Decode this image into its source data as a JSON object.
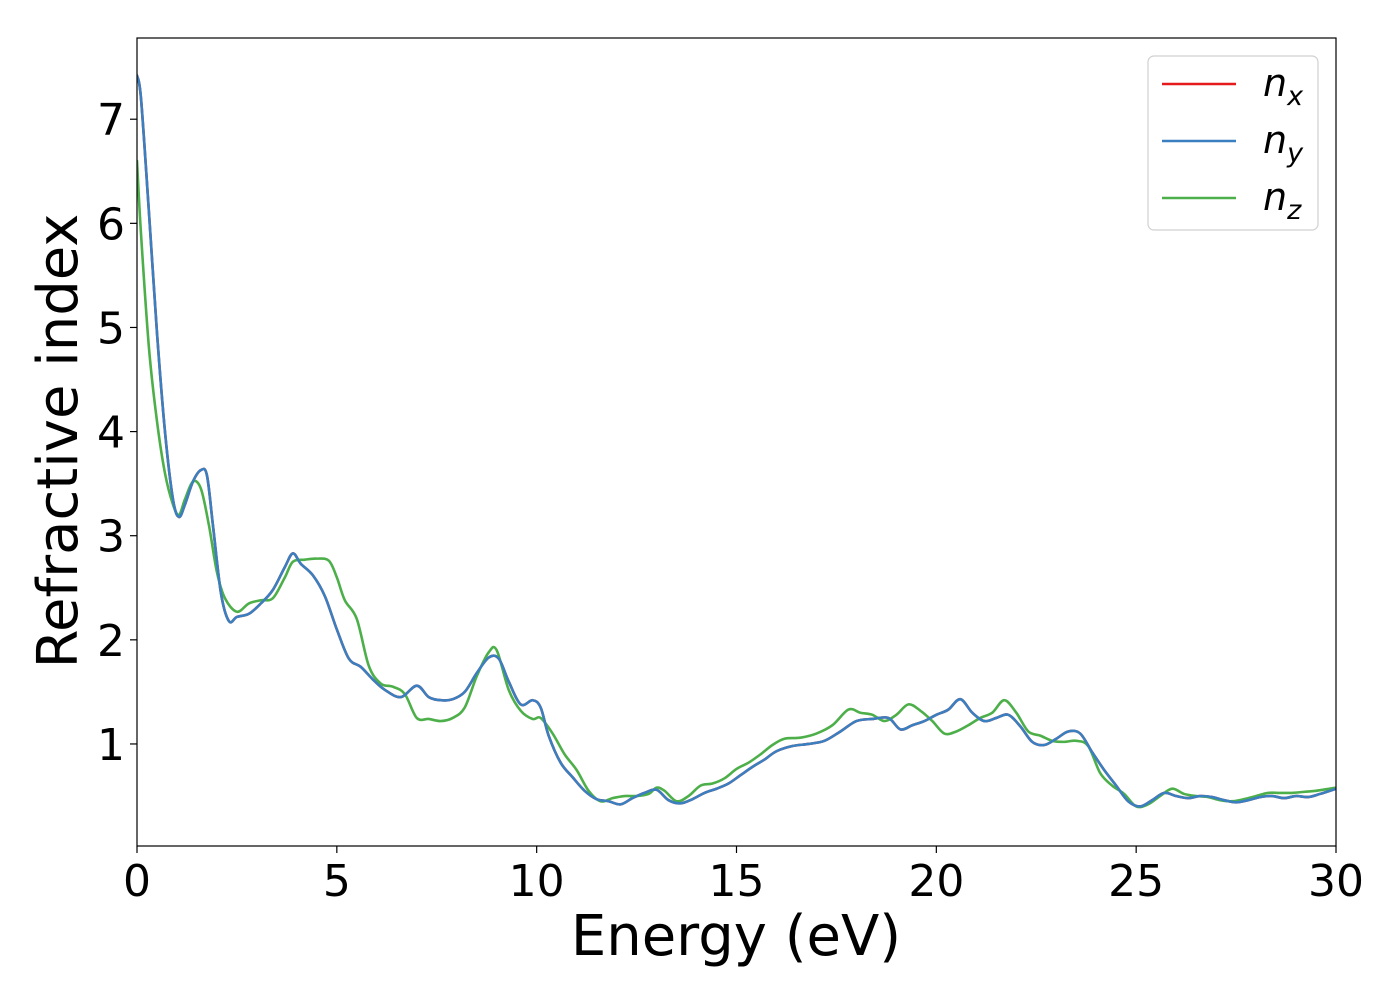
{
  "chart_data": {
    "type": "line",
    "title": "",
    "xlabel": "Energy (eV)",
    "ylabel": "Refractive index",
    "xlim": [
      0,
      30
    ],
    "ylim": [
      0.02,
      7.78
    ],
    "xticks": [
      0,
      5,
      10,
      15,
      20,
      25,
      30
    ],
    "yticks": [
      1,
      2,
      3,
      4,
      5,
      6,
      7
    ],
    "grid": false,
    "legend_position": "top-right",
    "series": [
      {
        "name": "n_x",
        "legend_base": "n",
        "legend_sub": "x",
        "color": "#e41a1c",
        "x": [
          0,
          0.1,
          0.3,
          0.5,
          0.7,
          0.9,
          1.05,
          1.2,
          1.4,
          1.6,
          1.75,
          1.9,
          2.1,
          2.3,
          2.5,
          2.8,
          3.1,
          3.4,
          3.7,
          3.9,
          4.1,
          4.4,
          4.7,
          5.0,
          5.3,
          5.6,
          5.9,
          6.2,
          6.6,
          7.0,
          7.3,
          7.6,
          7.9,
          8.2,
          8.5,
          8.8,
          9.05,
          9.3,
          9.6,
          9.9,
          10.1,
          10.3,
          10.6,
          10.9,
          11.2,
          11.5,
          11.8,
          12.1,
          12.4,
          12.7,
          13.0,
          13.3,
          13.6,
          13.9,
          14.2,
          14.5,
          14.8,
          15.1,
          15.4,
          15.7,
          16.0,
          16.4,
          16.8,
          17.2,
          17.6,
          18.0,
          18.4,
          18.8,
          19.1,
          19.4,
          19.7,
          20.0,
          20.3,
          20.6,
          20.9,
          21.2,
          21.5,
          21.8,
          22.1,
          22.4,
          22.7,
          23.0,
          23.3,
          23.6,
          23.9,
          24.2,
          24.5,
          24.8,
          25.1,
          25.4,
          25.7,
          26.0,
          26.3,
          26.6,
          26.9,
          27.2,
          27.5,
          27.8,
          28.1,
          28.4,
          28.7,
          29.0,
          29.3,
          29.6,
          30.0
        ],
        "y": [
          7.42,
          7.2,
          6.1,
          4.95,
          4.0,
          3.35,
          3.18,
          3.3,
          3.52,
          3.63,
          3.58,
          3.1,
          2.45,
          2.18,
          2.22,
          2.25,
          2.35,
          2.48,
          2.7,
          2.83,
          2.73,
          2.62,
          2.42,
          2.1,
          1.82,
          1.74,
          1.62,
          1.52,
          1.45,
          1.56,
          1.45,
          1.42,
          1.43,
          1.5,
          1.68,
          1.83,
          1.82,
          1.6,
          1.38,
          1.42,
          1.35,
          1.08,
          0.82,
          0.68,
          0.55,
          0.47,
          0.45,
          0.42,
          0.48,
          0.53,
          0.56,
          0.46,
          0.43,
          0.47,
          0.53,
          0.57,
          0.62,
          0.7,
          0.78,
          0.85,
          0.93,
          0.98,
          1.0,
          1.03,
          1.12,
          1.22,
          1.24,
          1.25,
          1.14,
          1.18,
          1.22,
          1.28,
          1.33,
          1.43,
          1.3,
          1.22,
          1.25,
          1.28,
          1.17,
          1.02,
          0.99,
          1.05,
          1.12,
          1.1,
          0.92,
          0.75,
          0.6,
          0.45,
          0.4,
          0.46,
          0.53,
          0.5,
          0.48,
          0.5,
          0.49,
          0.46,
          0.44,
          0.46,
          0.49,
          0.5,
          0.48,
          0.5,
          0.49,
          0.52,
          0.57
        ]
      },
      {
        "name": "n_y",
        "legend_base": "n",
        "legend_sub": "y",
        "color": "#3a7fbf",
        "x": [
          0,
          0.1,
          0.3,
          0.5,
          0.7,
          0.9,
          1.05,
          1.2,
          1.4,
          1.6,
          1.75,
          1.9,
          2.1,
          2.3,
          2.5,
          2.8,
          3.1,
          3.4,
          3.7,
          3.9,
          4.1,
          4.4,
          4.7,
          5.0,
          5.3,
          5.6,
          5.9,
          6.2,
          6.6,
          7.0,
          7.3,
          7.6,
          7.9,
          8.2,
          8.5,
          8.8,
          9.05,
          9.3,
          9.6,
          9.9,
          10.1,
          10.3,
          10.6,
          10.9,
          11.2,
          11.5,
          11.8,
          12.1,
          12.4,
          12.7,
          13.0,
          13.3,
          13.6,
          13.9,
          14.2,
          14.5,
          14.8,
          15.1,
          15.4,
          15.7,
          16.0,
          16.4,
          16.8,
          17.2,
          17.6,
          18.0,
          18.4,
          18.8,
          19.1,
          19.4,
          19.7,
          20.0,
          20.3,
          20.6,
          20.9,
          21.2,
          21.5,
          21.8,
          22.1,
          22.4,
          22.7,
          23.0,
          23.3,
          23.6,
          23.9,
          24.2,
          24.5,
          24.8,
          25.1,
          25.4,
          25.7,
          26.0,
          26.3,
          26.6,
          26.9,
          27.2,
          27.5,
          27.8,
          28.1,
          28.4,
          28.7,
          29.0,
          29.3,
          29.6,
          30.0
        ],
        "y": [
          7.42,
          7.2,
          6.1,
          4.95,
          4.0,
          3.35,
          3.18,
          3.3,
          3.52,
          3.63,
          3.58,
          3.1,
          2.45,
          2.18,
          2.22,
          2.25,
          2.35,
          2.48,
          2.7,
          2.83,
          2.73,
          2.62,
          2.42,
          2.1,
          1.82,
          1.74,
          1.62,
          1.52,
          1.45,
          1.56,
          1.45,
          1.42,
          1.43,
          1.5,
          1.68,
          1.83,
          1.82,
          1.6,
          1.38,
          1.42,
          1.35,
          1.08,
          0.82,
          0.68,
          0.55,
          0.47,
          0.45,
          0.42,
          0.48,
          0.53,
          0.56,
          0.46,
          0.43,
          0.47,
          0.53,
          0.57,
          0.62,
          0.7,
          0.78,
          0.85,
          0.93,
          0.98,
          1.0,
          1.03,
          1.12,
          1.22,
          1.24,
          1.25,
          1.14,
          1.18,
          1.22,
          1.28,
          1.33,
          1.43,
          1.3,
          1.22,
          1.25,
          1.28,
          1.17,
          1.02,
          0.99,
          1.05,
          1.12,
          1.1,
          0.92,
          0.75,
          0.6,
          0.45,
          0.4,
          0.46,
          0.53,
          0.5,
          0.48,
          0.5,
          0.49,
          0.46,
          0.44,
          0.46,
          0.49,
          0.5,
          0.48,
          0.5,
          0.49,
          0.52,
          0.57
        ]
      },
      {
        "name": "n_z",
        "legend_base": "n",
        "legend_sub": "z",
        "color": "#4daf4a",
        "x": [
          0,
          0.1,
          0.3,
          0.5,
          0.7,
          0.9,
          1.05,
          1.2,
          1.4,
          1.6,
          1.8,
          2.0,
          2.2,
          2.5,
          2.8,
          3.1,
          3.4,
          3.7,
          3.9,
          4.2,
          4.5,
          4.8,
          5.0,
          5.2,
          5.5,
          5.8,
          6.1,
          6.4,
          6.7,
          7.0,
          7.3,
          7.6,
          7.9,
          8.2,
          8.5,
          8.8,
          9.0,
          9.3,
          9.6,
          9.9,
          10.1,
          10.4,
          10.7,
          11.0,
          11.3,
          11.6,
          11.9,
          12.2,
          12.5,
          12.8,
          13.0,
          13.2,
          13.5,
          13.8,
          14.1,
          14.4,
          14.7,
          15.0,
          15.3,
          15.6,
          15.9,
          16.2,
          16.6,
          17.0,
          17.4,
          17.8,
          18.1,
          18.4,
          18.7,
          19.0,
          19.3,
          19.6,
          19.9,
          20.2,
          20.5,
          20.8,
          21.1,
          21.4,
          21.7,
          22.0,
          22.3,
          22.6,
          22.9,
          23.2,
          23.5,
          23.8,
          24.1,
          24.4,
          24.7,
          25.0,
          25.3,
          25.6,
          25.9,
          26.2,
          26.5,
          26.8,
          27.1,
          27.4,
          27.7,
          28.0,
          28.3,
          28.6,
          28.9,
          29.2,
          29.5,
          30.0
        ],
        "y": [
          6.6,
          5.9,
          4.8,
          4.1,
          3.6,
          3.3,
          3.2,
          3.35,
          3.52,
          3.45,
          3.1,
          2.65,
          2.4,
          2.27,
          2.35,
          2.38,
          2.4,
          2.6,
          2.75,
          2.77,
          2.78,
          2.76,
          2.6,
          2.38,
          2.2,
          1.75,
          1.58,
          1.55,
          1.48,
          1.25,
          1.24,
          1.22,
          1.25,
          1.35,
          1.65,
          1.88,
          1.9,
          1.52,
          1.32,
          1.24,
          1.25,
          1.1,
          0.9,
          0.75,
          0.55,
          0.45,
          0.48,
          0.5,
          0.5,
          0.52,
          0.58,
          0.55,
          0.45,
          0.5,
          0.6,
          0.62,
          0.67,
          0.76,
          0.82,
          0.9,
          0.99,
          1.05,
          1.06,
          1.1,
          1.18,
          1.33,
          1.3,
          1.28,
          1.22,
          1.28,
          1.38,
          1.32,
          1.22,
          1.1,
          1.12,
          1.18,
          1.25,
          1.3,
          1.42,
          1.3,
          1.12,
          1.08,
          1.03,
          1.02,
          1.03,
          0.98,
          0.72,
          0.6,
          0.52,
          0.4,
          0.42,
          0.5,
          0.57,
          0.52,
          0.5,
          0.49,
          0.46,
          0.45,
          0.47,
          0.5,
          0.53,
          0.53,
          0.53,
          0.54,
          0.55,
          0.58
        ]
      }
    ]
  }
}
